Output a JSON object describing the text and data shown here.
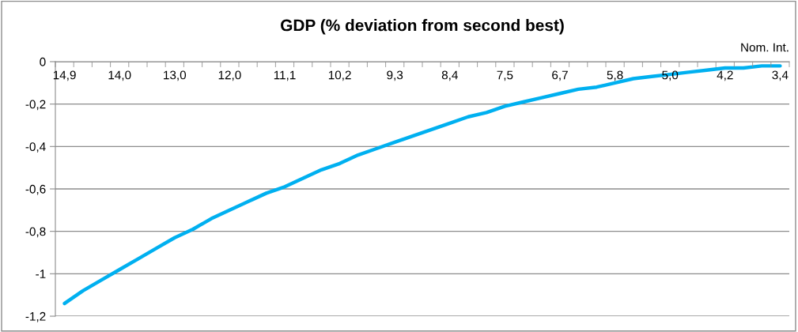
{
  "chart_data": {
    "type": "line",
    "title": "GDP (% deviation from second best)",
    "xlabel": "Nom. Int.",
    "categories": [
      "14,9",
      null,
      null,
      "14,0",
      null,
      null,
      "13,0",
      null,
      null,
      "12,0",
      null,
      null,
      "11,1",
      null,
      null,
      "10,2",
      null,
      null,
      "9,3",
      null,
      null,
      "8,4",
      null,
      null,
      "7,5",
      null,
      null,
      "6,7",
      null,
      null,
      "5,8",
      null,
      null,
      "5,0",
      null,
      null,
      "4,2",
      null,
      null,
      "3,4"
    ],
    "series": [
      {
        "color": "#00b0f0",
        "values": [
          -1.14,
          -1.08,
          -1.03,
          -0.98,
          -0.93,
          -0.88,
          -0.83,
          -0.79,
          -0.74,
          -0.7,
          -0.66,
          -0.62,
          -0.59,
          -0.55,
          -0.51,
          -0.48,
          -0.44,
          -0.41,
          -0.38,
          -0.35,
          -0.32,
          -0.29,
          -0.26,
          -0.24,
          -0.21,
          -0.19,
          -0.17,
          -0.15,
          -0.13,
          -0.12,
          -0.1,
          -0.08,
          -0.07,
          -0.06,
          -0.05,
          -0.04,
          -0.03,
          -0.03,
          -0.02,
          -0.02
        ]
      }
    ],
    "ylim": [
      -1.2,
      0
    ],
    "yticks": [
      0,
      {
        "value": -0.2,
        "label": "-0,2"
      },
      {
        "value": -0.4,
        "label": "-0,4"
      },
      {
        "value": -0.6,
        "label": "-0,6"
      },
      {
        "value": -0.8,
        "label": "-0,8"
      },
      -1,
      {
        "value": -1.2,
        "label": "-1,2"
      }
    ],
    "grid": "y",
    "marker": "none",
    "line_style": "solid"
  }
}
